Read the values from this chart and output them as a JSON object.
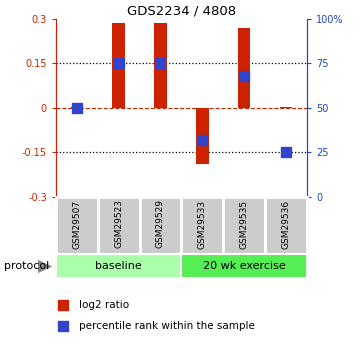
{
  "title": "GDS2234 / 4808",
  "samples": [
    "GSM29507",
    "GSM29523",
    "GSM29529",
    "GSM29533",
    "GSM29535",
    "GSM29536"
  ],
  "log2_ratio": [
    0.002,
    0.285,
    0.285,
    -0.19,
    0.27,
    0.002
  ],
  "percentile_rank": [
    50,
    75,
    75,
    32,
    68,
    25
  ],
  "ylim_left": [
    -0.3,
    0.3
  ],
  "ylim_right": [
    0,
    100
  ],
  "yticks_left": [
    -0.3,
    -0.15,
    0,
    0.15,
    0.3
  ],
  "yticks_right": [
    0,
    25,
    50,
    75,
    100
  ],
  "ytick_labels_left": [
    "-0.3",
    "-0.15",
    "0",
    "0.15",
    "0.3"
  ],
  "ytick_labels_right": [
    "0",
    "25",
    "50",
    "75",
    "100%"
  ],
  "hlines_dotted": [
    0.15,
    -0.15
  ],
  "hline_dashed": 0,
  "bar_color": "#cc2200",
  "dot_color": "#3344cc",
  "bar_width": 0.3,
  "dot_size": 55,
  "group_labels": [
    "baseline",
    "20 wk exercise"
  ],
  "group_ranges": [
    [
      0,
      3
    ],
    [
      3,
      6
    ]
  ],
  "group_color_1": "#aaffaa",
  "group_color_2": "#55ee55",
  "protocol_label": "protocol",
  "legend_bar": "log2 ratio",
  "legend_dot": "percentile rank within the sample",
  "background_color": "#ffffff",
  "axis_color_left": "#cc2200",
  "axis_color_right": "#2244cc",
  "grid_color": "#000000"
}
